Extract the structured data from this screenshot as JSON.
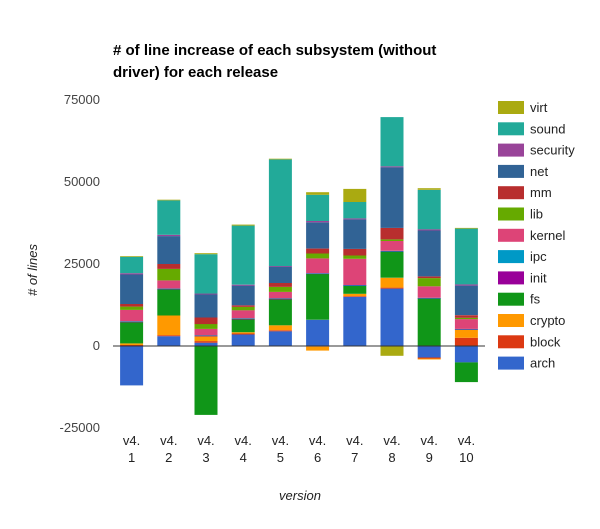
{
  "chart_data": {
    "type": "bar",
    "stacked": true,
    "title": "# of line increase of each subsystem (without driver) for each release",
    "xlabel": "version",
    "ylabel": "# of lines",
    "ylim": [
      -25000,
      75000
    ],
    "yticks": [
      -25000,
      0,
      25000,
      50000,
      75000
    ],
    "ytick_labels": [
      "-25000",
      "0",
      "25000",
      "50000",
      "75000"
    ],
    "categories": [
      [
        "v4.",
        "1"
      ],
      [
        "v4.",
        "2"
      ],
      [
        "v4.",
        "3"
      ],
      [
        "v4.",
        "4"
      ],
      [
        "v4.",
        "5"
      ],
      [
        "v4.",
        "6"
      ],
      [
        "v4.",
        "7"
      ],
      [
        "v4.",
        "8"
      ],
      [
        "v4.",
        "9"
      ],
      [
        "v4.",
        "10"
      ]
    ],
    "grid": false,
    "legend_position": "right",
    "series": [
      {
        "name": "arch",
        "color": "#3366cc",
        "values": [
          -12000,
          3000,
          1000,
          3500,
          4500,
          8000,
          15000,
          17500,
          -3500,
          -5000
        ]
      },
      {
        "name": "block",
        "color": "#dc3912",
        "values": [
          300,
          300,
          500,
          300,
          300,
          -200,
          200,
          300,
          -300,
          2500
        ]
      },
      {
        "name": "crypto",
        "color": "#ff9900",
        "values": [
          500,
          6000,
          1500,
          400,
          1500,
          -1200,
          700,
          3000,
          -300,
          2500
        ]
      },
      {
        "name": "fs",
        "color": "#109618",
        "values": [
          6500,
          8000,
          -21000,
          4000,
          8000,
          14000,
          2500,
          8000,
          14500,
          -6000
        ]
      },
      {
        "name": "init",
        "color": "#990099",
        "values": [
          100,
          100,
          100,
          100,
          100,
          100,
          100,
          100,
          100,
          100
        ]
      },
      {
        "name": "ipc",
        "color": "#0099c6",
        "values": [
          100,
          100,
          100,
          100,
          100,
          100,
          100,
          100,
          100,
          100
        ]
      },
      {
        "name": "kernel",
        "color": "#dd4477",
        "values": [
          3500,
          2500,
          2000,
          2500,
          2000,
          4500,
          8000,
          3000,
          3500,
          3000
        ]
      },
      {
        "name": "lib",
        "color": "#66aa00",
        "values": [
          1000,
          3500,
          1500,
          1000,
          1500,
          1500,
          1000,
          500,
          2500,
          400
        ]
      },
      {
        "name": "mm",
        "color": "#b82e2e",
        "values": [
          800,
          1500,
          2000,
          500,
          1200,
          1500,
          2000,
          3500,
          500,
          800
        ]
      },
      {
        "name": "net",
        "color": "#316395",
        "values": [
          9000,
          8500,
          7000,
          6000,
          5000,
          8000,
          9000,
          18500,
          14000,
          9000
        ]
      },
      {
        "name": "security",
        "color": "#994499",
        "values": [
          400,
          400,
          300,
          300,
          200,
          400,
          300,
          300,
          400,
          400
        ]
      },
      {
        "name": "sound",
        "color": "#22aa99",
        "values": [
          5000,
          10500,
          12000,
          18000,
          32500,
          8000,
          5000,
          15000,
          12000,
          17000
        ]
      },
      {
        "name": "virt",
        "color": "#aaaa11",
        "values": [
          200,
          200,
          300,
          300,
          200,
          800,
          4000,
          -3000,
          500,
          200
        ]
      }
    ]
  }
}
